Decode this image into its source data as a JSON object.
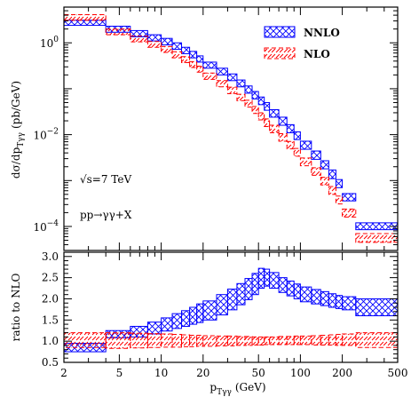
{
  "chart_data": [
    {
      "id": "top-panel",
      "type": "histogram-band",
      "xscale": "log",
      "yscale": "log",
      "xlim": [
        2,
        500
      ],
      "ylim": [
        3e-05,
        6
      ],
      "ylabel": "dσ/dp",
      "ylabel_sub": "Tγγ",
      "ylabel_unit": "(pb/GeV)",
      "xticks": [
        2,
        5,
        10,
        20,
        50,
        100,
        200,
        500
      ],
      "yticks": [
        {
          "value": 1,
          "base": "10",
          "exp": "0"
        },
        {
          "value": 0.01,
          "base": "10",
          "exp": "−2"
        },
        {
          "value": 0.0001,
          "base": "10",
          "exp": "−4"
        }
      ],
      "annotations": [
        "√s=7 TeV",
        "pp→γγ+X"
      ],
      "legend_position": "top-right",
      "bin_edges": [
        2,
        4,
        6,
        8,
        10,
        12,
        14,
        16,
        18,
        20,
        25,
        30,
        35,
        40,
        45,
        50,
        55,
        60,
        70,
        80,
        90,
        100,
        120,
        140,
        160,
        180,
        200,
        250,
        500
      ],
      "series": [
        {
          "name": "NNLO",
          "color": "#0000ff",
          "low": [
            2.4,
            1.7,
            1.35,
            1.1,
            0.9,
            0.72,
            0.58,
            0.47,
            0.38,
            0.28,
            0.2,
            0.15,
            0.11,
            0.08,
            0.06,
            0.045,
            0.034,
            0.024,
            0.016,
            0.011,
            0.0078,
            0.0048,
            0.0029,
            0.0018,
            0.0011,
            0.0007,
            0.00036,
            8.5e-05
          ],
          "high": [
            3.1,
            2.3,
            1.85,
            1.5,
            1.25,
            1.0,
            0.8,
            0.65,
            0.52,
            0.38,
            0.28,
            0.21,
            0.155,
            0.115,
            0.087,
            0.066,
            0.05,
            0.035,
            0.024,
            0.0165,
            0.0115,
            0.0072,
            0.0044,
            0.0027,
            0.0017,
            0.00105,
            0.00052,
            0.00012
          ]
        },
        {
          "name": "NLO",
          "color": "#ff0000",
          "low": [
            3.1,
            1.5,
            1.05,
            0.8,
            0.62,
            0.47,
            0.37,
            0.29,
            0.23,
            0.16,
            0.11,
            0.078,
            0.055,
            0.04,
            0.029,
            0.021,
            0.015,
            0.011,
            0.0072,
            0.0049,
            0.0034,
            0.0021,
            0.0013,
            0.0008,
            0.0005,
            0.00031,
            0.00016,
            4.5e-05
          ],
          "high": [
            4.1,
            2.0,
            1.4,
            1.07,
            0.83,
            0.64,
            0.5,
            0.39,
            0.31,
            0.22,
            0.15,
            0.108,
            0.076,
            0.056,
            0.041,
            0.03,
            0.022,
            0.016,
            0.0105,
            0.0071,
            0.005,
            0.0031,
            0.0019,
            0.00118,
            0.00074,
            0.00046,
            0.00024,
            7e-05
          ]
        }
      ]
    },
    {
      "id": "ratio-panel",
      "type": "histogram-band",
      "xscale": "log",
      "yscale": "linear",
      "xlim": [
        2,
        500
      ],
      "ylim": [
        0.5,
        3.1
      ],
      "xlabel": "p",
      "xlabel_sub": "Tγγ",
      "xlabel_unit": "(GeV)",
      "ylabel": "ratio to NLO",
      "xticks": [
        2,
        5,
        10,
        20,
        50,
        100,
        200,
        500
      ],
      "yticks": [
        "0.5",
        "1.0",
        "1.5",
        "2.0",
        "2.5",
        "3.0"
      ],
      "bin_edges": [
        2,
        4,
        6,
        8,
        10,
        12,
        14,
        16,
        18,
        20,
        25,
        30,
        35,
        40,
        45,
        50,
        55,
        60,
        70,
        80,
        90,
        100,
        120,
        140,
        160,
        180,
        200,
        250,
        500
      ],
      "series": [
        {
          "name": "NNLO",
          "color": "#0000ff",
          "low": [
            0.75,
            1.08,
            1.1,
            1.17,
            1.24,
            1.3,
            1.35,
            1.4,
            1.44,
            1.5,
            1.62,
            1.74,
            1.86,
            1.98,
            2.1,
            2.25,
            2.3,
            2.25,
            2.15,
            2.07,
            2.0,
            1.93,
            1.88,
            1.84,
            1.8,
            1.77,
            1.74,
            1.6
          ],
          "high": [
            0.95,
            1.25,
            1.35,
            1.45,
            1.55,
            1.65,
            1.72,
            1.8,
            1.88,
            1.95,
            2.1,
            2.23,
            2.36,
            2.48,
            2.6,
            2.72,
            2.7,
            2.62,
            2.5,
            2.42,
            2.35,
            2.28,
            2.22,
            2.17,
            2.12,
            2.08,
            2.05,
            2.0
          ]
        },
        {
          "name": "NLO",
          "color": "#ff0000",
          "low": [
            0.85,
            0.83,
            0.84,
            0.85,
            0.86,
            0.86,
            0.87,
            0.87,
            0.88,
            0.88,
            0.89,
            0.89,
            0.9,
            0.9,
            0.91,
            0.91,
            0.92,
            0.92,
            0.92,
            0.92,
            0.92,
            0.92,
            0.91,
            0.91,
            0.91,
            0.9,
            0.9,
            0.85
          ],
          "high": [
            1.2,
            1.2,
            1.19,
            1.18,
            1.17,
            1.16,
            1.15,
            1.14,
            1.14,
            1.13,
            1.12,
            1.12,
            1.11,
            1.11,
            1.1,
            1.1,
            1.1,
            1.1,
            1.11,
            1.11,
            1.12,
            1.12,
            1.13,
            1.14,
            1.15,
            1.16,
            1.17,
            1.2
          ]
        }
      ]
    }
  ]
}
